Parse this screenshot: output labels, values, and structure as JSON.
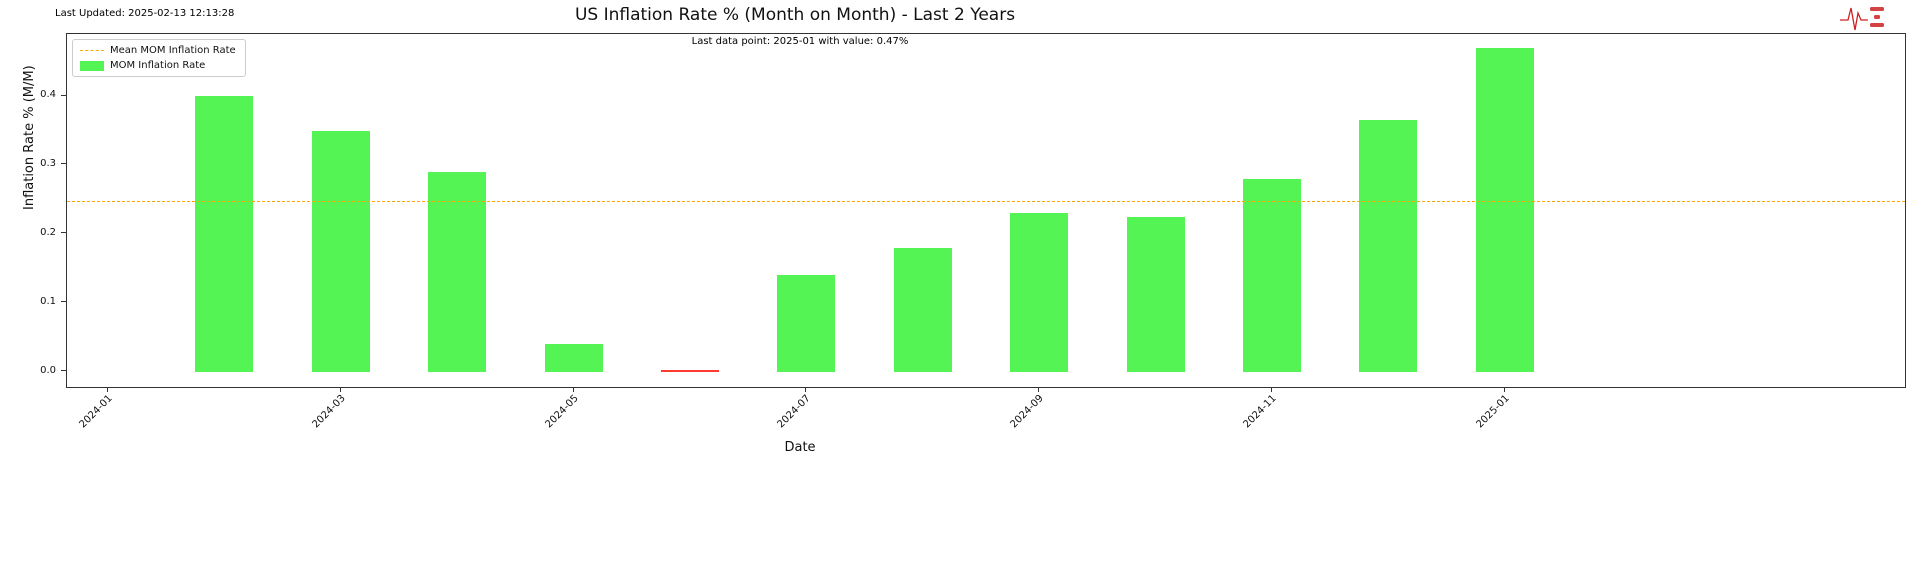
{
  "header": {
    "last_updated": "Last Updated: 2025-02-13 12:13:28",
    "title": "US Inflation Rate % (Month on Month) - Last 2 Years",
    "annotation": "Last data point: 2025-01 with value: 0.47%"
  },
  "legend": {
    "mean_label": "Mean MOM Inflation Rate",
    "series_label": "MOM Inflation Rate"
  },
  "axes": {
    "ylabel": "Inflation Rate % (M/M)",
    "xlabel": "Date"
  },
  "colors": {
    "bar_positive": "#53f453",
    "bar_zero_or_negative": "#ff3b30",
    "mean_line": "#ffa500",
    "spine": "#333333",
    "logo_red": "#cc2222"
  },
  "icons": {
    "brand_logo": "heartbeat-logo-icon"
  },
  "chart_data": {
    "type": "bar",
    "title": "US Inflation Rate % (Month on Month) - Last 2 Years",
    "xlabel": "Date",
    "ylabel": "Inflation Rate % (M/M)",
    "categories": [
      "2024-02",
      "2024-03",
      "2024-04",
      "2024-05",
      "2024-06",
      "2024-07",
      "2024-08",
      "2024-09",
      "2024-10",
      "2024-11",
      "2024-12",
      "2025-01"
    ],
    "values": [
      0.4,
      0.35,
      0.29,
      0.04,
      0.0,
      0.14,
      0.18,
      0.23,
      0.225,
      0.28,
      0.365,
      0.47
    ],
    "bar_colors": [
      "#53f453",
      "#53f453",
      "#53f453",
      "#53f453",
      "#ff3b30",
      "#53f453",
      "#53f453",
      "#53f453",
      "#53f453",
      "#53f453",
      "#53f453",
      "#53f453"
    ],
    "mean_value": 0.2475,
    "mean_line_color": "#ffa500",
    "mean_line_style": "dashed",
    "x_tick_labels": [
      "2024-01",
      "2024-03",
      "2024-05",
      "2024-07",
      "2024-09",
      "2024-11",
      "2025-01"
    ],
    "y_tick_labels": [
      "0.0",
      "0.1",
      "0.2",
      "0.3",
      "0.4"
    ],
    "ylim": [
      -0.025,
      0.49
    ],
    "grid": false,
    "legend_entries": [
      "Mean MOM Inflation Rate",
      "MOM Inflation Rate"
    ],
    "legend_position": "upper left",
    "annotation": "Last data point: 2025-01 with value: 0.47%"
  }
}
